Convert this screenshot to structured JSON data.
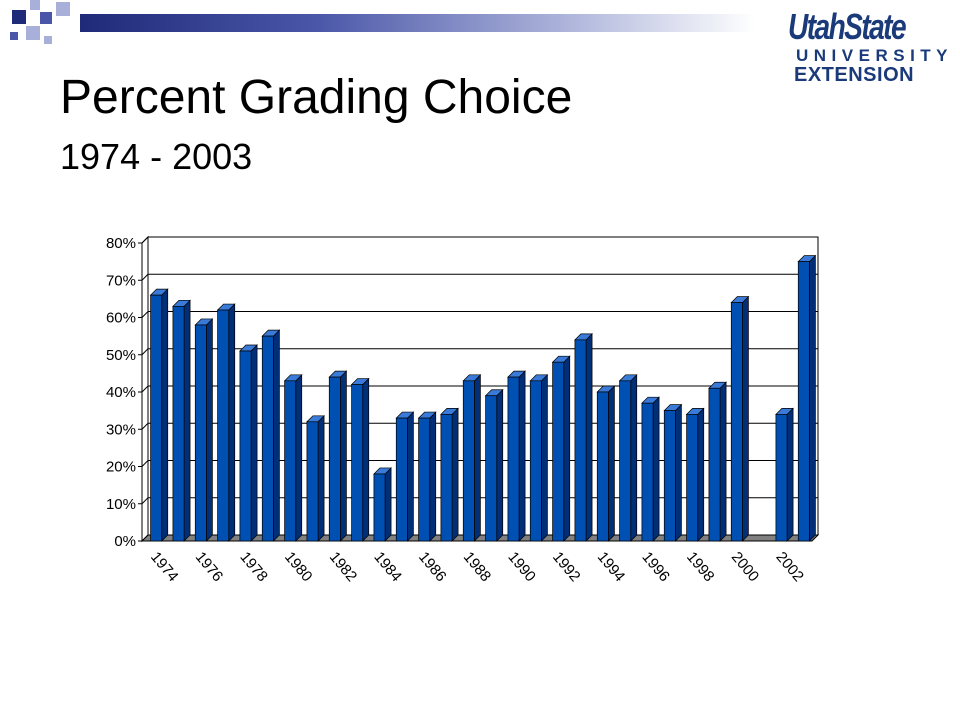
{
  "slide": {
    "title": "Percent Grading Choice",
    "subtitle": "1974 - 2003"
  },
  "logo": {
    "line1": "UtahState",
    "line2": "UNIVERSITY",
    "line3": "EXTENSION"
  },
  "colors": {
    "bar": "#0050b4",
    "bar_top": "#3a7ad8",
    "bar_side": "#002f78",
    "floor": "#808080",
    "accent_dark": "#1f2a78",
    "accent_mid": "#4a57a8",
    "accent_light": "#a8afd8"
  },
  "chart_data": {
    "type": "bar",
    "title": "",
    "xlabel": "",
    "ylabel": "",
    "ylim": [
      0,
      80
    ],
    "y_ticks": [
      "0%",
      "10%",
      "20%",
      "30%",
      "40%",
      "50%",
      "60%",
      "70%",
      "80%"
    ],
    "grid": true,
    "legend": "none",
    "categories": [
      "1974",
      "1975",
      "1976",
      "1977",
      "1978",
      "1979",
      "1980",
      "1981",
      "1982",
      "1983",
      "1984",
      "1985",
      "1986",
      "1987",
      "1988",
      "1989",
      "1990",
      "1991",
      "1992",
      "1993",
      "1994",
      "1995",
      "1996",
      "1997",
      "1998",
      "1999",
      "2000",
      "2001",
      "2002",
      "2003"
    ],
    "tick_labels": [
      "1974",
      "1976",
      "1978",
      "1980",
      "1982",
      "1984",
      "1986",
      "1988",
      "1990",
      "1992",
      "1994",
      "1996",
      "1998",
      "2000",
      "2002"
    ],
    "values": [
      66,
      63,
      58,
      62,
      51,
      55,
      43,
      32,
      44,
      42,
      18,
      33,
      33,
      34,
      43,
      39,
      44,
      43,
      48,
      54,
      40,
      43,
      37,
      35,
      34,
      41,
      64,
      null,
      34,
      75
    ]
  }
}
